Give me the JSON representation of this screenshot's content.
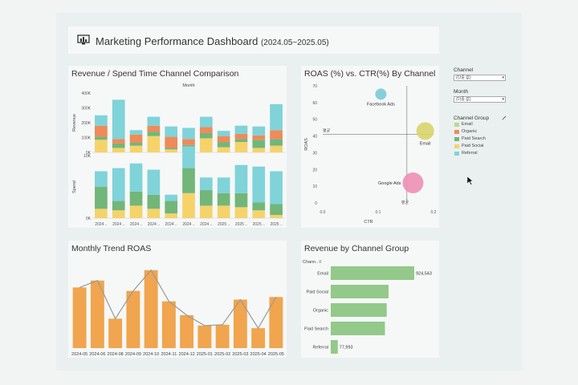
{
  "dashboard": {
    "title": "Marketing Performance Dashboard",
    "subtitle": "(2024.05~2025.05)",
    "icon": "monitor-chart-icon"
  },
  "colors": {
    "referral": "#7fd3d9",
    "organic": "#ef8a5a",
    "paid_search": "#72b67a",
    "paid_social": "#f5d36a",
    "email": "#b9d98a",
    "roas_bar": "#f0a54e",
    "hbar": "#93c98a",
    "bubble_facebook": "#7cc9d6",
    "bubble_email": "#d9d36a",
    "bubble_google": "#ee8fb4"
  },
  "filters": {
    "channel_label": "Channel",
    "channel_value": "(다중 값)",
    "month_label": "Month",
    "month_value": "(다중 값)",
    "group_label": "Channel Group",
    "legend": [
      "Email",
      "Organic",
      "Paid Search",
      "Paid Social",
      "Referral"
    ]
  },
  "panels": {
    "revenue_spend_title": "Revenue / Spend Time Channel Comparison",
    "roas_ctr_title": "ROAS (%) vs. CTR(%) By Channel",
    "monthly_trend_title": "Monthly Trend ROAS",
    "revenue_group_title": "Revenue by Channel Group"
  },
  "chart_data": [
    {
      "type": "bar",
      "title": "Revenue / Spend Time Channel Comparison",
      "xlabel": "Month",
      "stacked": true,
      "categories": [
        "2024 ..",
        "2024 ..",
        "2024 ..",
        "2024 ..",
        "2024 ..",
        "2024 ..",
        "2024 ..",
        "2025 ..",
        "2025 ..",
        "2025 ..",
        "2025 .."
      ],
      "revenue": {
        "ylabel": "Revenue",
        "yticks": [
          "0K",
          "100K",
          "200K",
          "300K",
          "400K"
        ],
        "ylim": [
          0,
          400000
        ],
        "series": [
          {
            "name": "Paid Social",
            "color_key": "paid_social",
            "values": [
              85000,
              30000,
              45000,
              110000,
              20000,
              25000,
              95000,
              35000,
              70000,
              30000,
              45000
            ]
          },
          {
            "name": "Paid Search",
            "color_key": "paid_search",
            "values": [
              20000,
              30000,
              20000,
              30000,
              10000,
              25000,
              35000,
              35000,
              20000,
              55000,
              45000
            ]
          },
          {
            "name": "Organic",
            "color_key": "organic",
            "values": [
              75000,
              30000,
              55000,
              40000,
              75000,
              40000,
              40000,
              40000,
              35000,
              30000,
              60000
            ]
          },
          {
            "name": "Referral",
            "color_key": "referral",
            "values": [
              70000,
              265000,
              30000,
              60000,
              70000,
              75000,
              70000,
              35000,
              55000,
              60000,
              175000
            ]
          }
        ]
      },
      "spend": {
        "ylabel": "Spend",
        "yticks": [
          "0K",
          "10K"
        ],
        "ylim": [
          0,
          20000
        ],
        "series": [
          {
            "name": "Paid Social",
            "color_key": "paid_social",
            "values": [
              3000,
              2500,
              4000,
              3000,
              1500,
              8000,
              4000,
              4000,
              3500,
              2500,
              1000
            ]
          },
          {
            "name": "Paid Search",
            "color_key": "paid_search",
            "values": [
              7000,
              3000,
              4500,
              4500,
              4000,
              8000,
              5000,
              4000,
              4500,
              2500,
              3500
            ]
          },
          {
            "name": "Referral",
            "color_key": "referral",
            "values": [
              5000,
              10500,
              9000,
              8000,
              2000,
              7000,
              4000,
              5000,
              9000,
              11500,
              10500
            ]
          }
        ]
      }
    },
    {
      "type": "scatter",
      "title": "ROAS (%) vs. CTR(%) By Channel",
      "xlabel": "CTR",
      "ylabel": "ROAS",
      "xlim": [
        0,
        0.2
      ],
      "ylim": [
        0,
        70
      ],
      "xticks": [
        "0.0",
        "0.1",
        "0.2"
      ],
      "yticks": [
        "0",
        "10",
        "20",
        "30",
        "40",
        "50",
        "60",
        "70"
      ],
      "ref_x_label": "평균",
      "ref_y_label": "평균",
      "points": [
        {
          "label": "Facebook Ads",
          "x": 0.105,
          "y": 65,
          "color_key": "bubble_facebook",
          "size": 7
        },
        {
          "label": "Email",
          "x": 0.185,
          "y": 43,
          "color_key": "bubble_email",
          "size": 11
        },
        {
          "label": "Google Ads",
          "x": 0.163,
          "y": 12,
          "color_key": "bubble_google",
          "size": 13
        }
      ],
      "ref_lines": {
        "x": 0.152,
        "y": 41
      }
    },
    {
      "type": "bar",
      "title": "Monthly Trend ROAS",
      "categories": [
        "2024-05",
        "2024-06",
        "2024-08",
        "2024-09",
        "2024-10",
        "2024-11",
        "2024-12",
        "2025-01",
        "2025-02",
        "2025-03",
        "2025-04",
        "2025-05"
      ],
      "values": [
        3.5,
        3.9,
        1.7,
        3.3,
        4.5,
        2.7,
        1.9,
        1.3,
        1.35,
        2.8,
        1.15,
        2.95
      ],
      "line_values": [
        3.5,
        3.9,
        1.7,
        3.3,
        4.5,
        2.7,
        1.9,
        1.3,
        1.35,
        2.8,
        1.15,
        2.95
      ],
      "ylim": [
        0,
        5
      ]
    },
    {
      "type": "bar",
      "orientation": "horizontal",
      "title": "Revenue by Channel Group",
      "axis_label": "Chann..",
      "categories": [
        "Email",
        "Paid Social",
        "Organic",
        "Paid Search",
        "Referral"
      ],
      "values": [
        924543,
        640000,
        620000,
        600000,
        77993
      ],
      "value_labels": [
        "924,543",
        "",
        "",
        "",
        "77,993"
      ]
    }
  ]
}
